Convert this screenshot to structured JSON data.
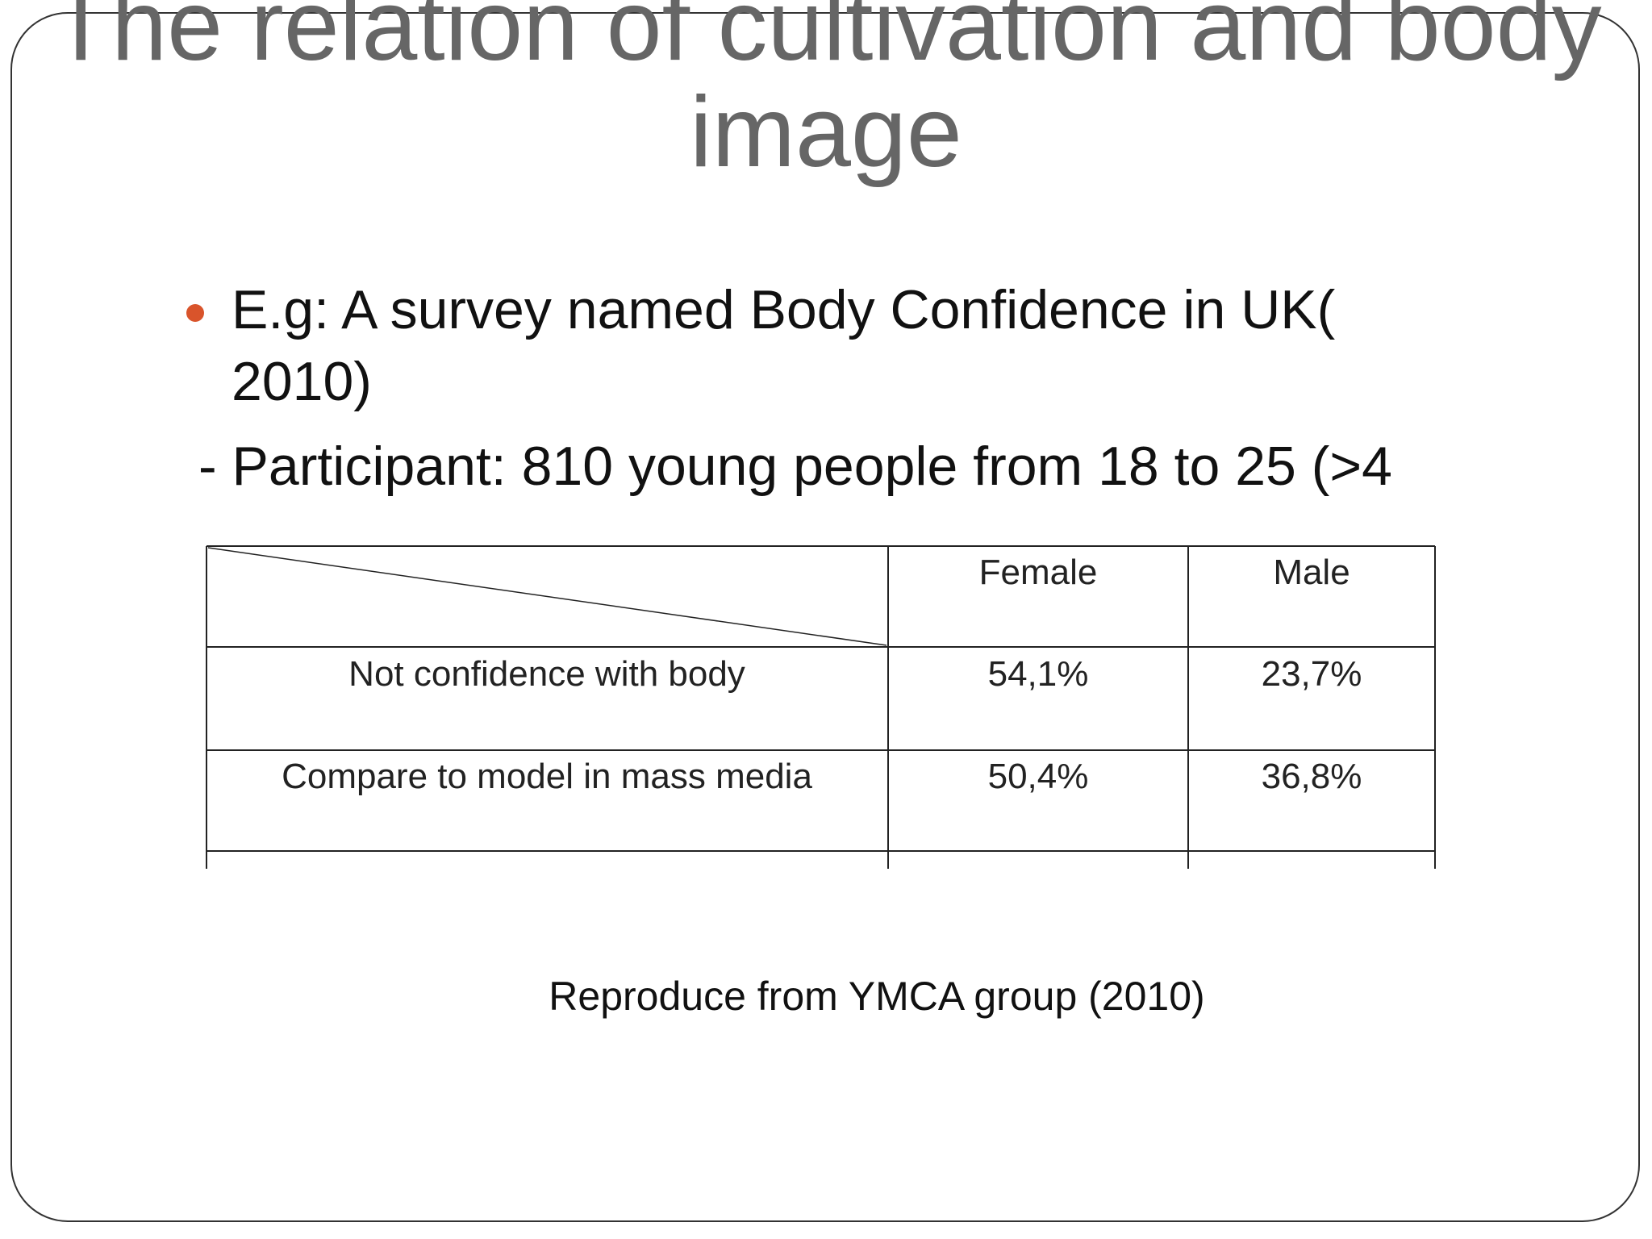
{
  "title": {
    "lines": [
      "The relation of cultivation and body",
      "image"
    ]
  },
  "bullet": {
    "lines": [
      "E.g: A survey  named Body Confidence in UK(",
      "2010)"
    ]
  },
  "participant": "- Participant: 810 young people from 18 to 25 (>4",
  "table": {
    "header": [
      "Female",
      "Male"
    ],
    "rows": [
      [
        "Not confidence with body",
        "54,1%",
        "23,7%"
      ],
      [
        "Compare to model in mass media",
        "50,4%",
        "36,8%"
      ]
    ]
  },
  "source": "Reproduce from YMCA group (2010)"
}
